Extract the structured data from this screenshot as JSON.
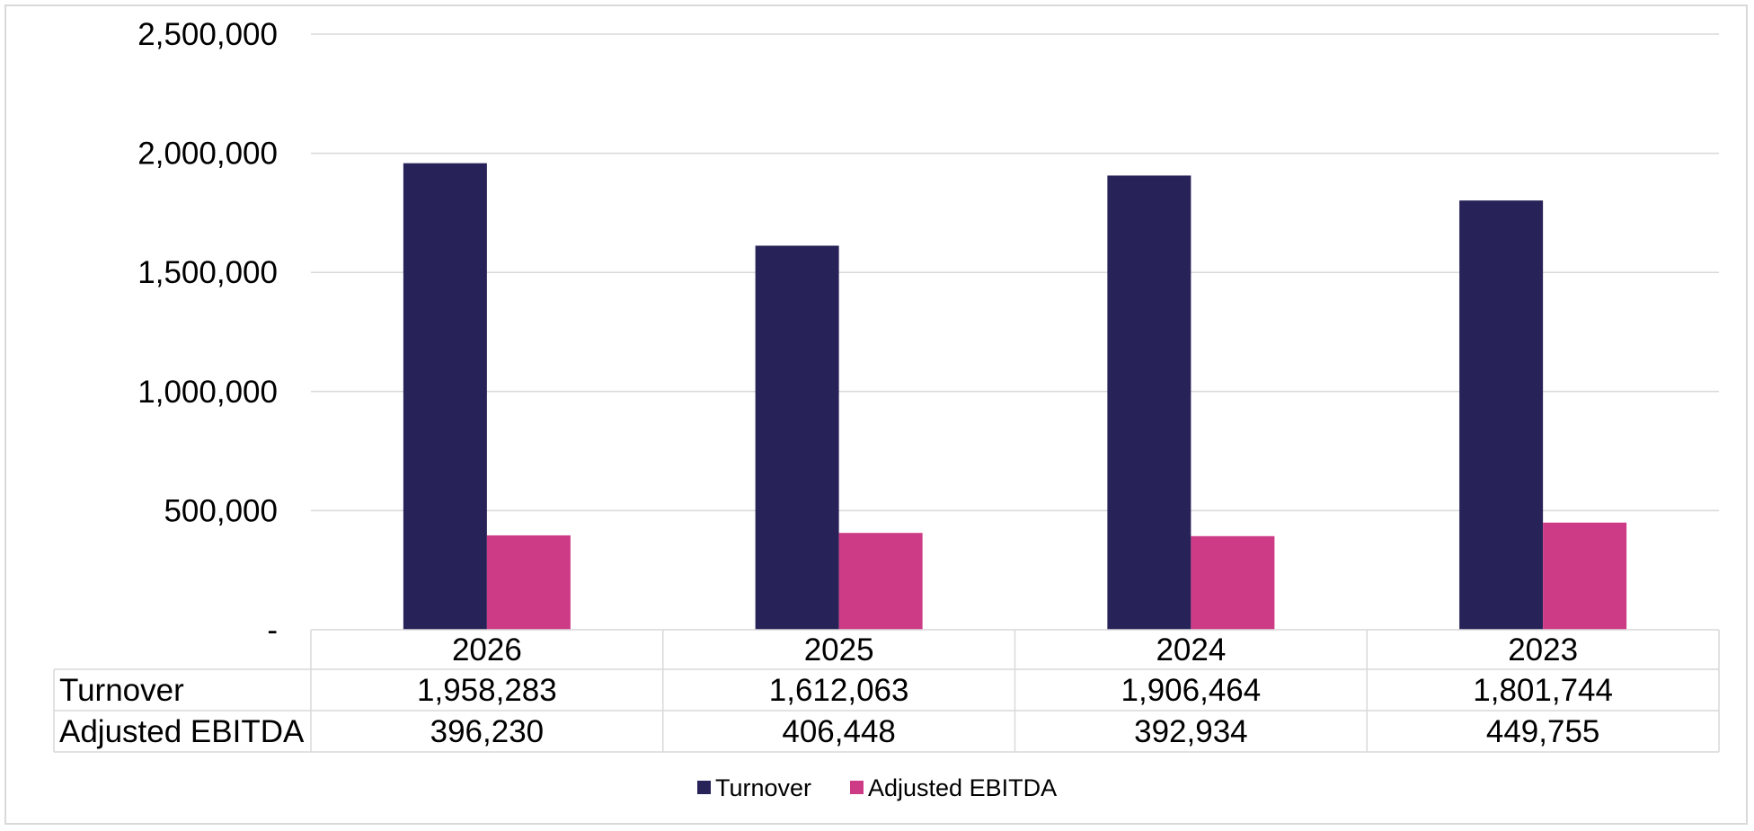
{
  "chart_data": {
    "type": "bar",
    "categories": [
      "2026",
      "2025",
      "2024",
      "2023"
    ],
    "series": [
      {
        "name": "Turnover",
        "values": [
          1958283,
          1612063,
          1906464,
          1801744
        ],
        "labels": [
          "1,958,283",
          "1,612,063",
          "1,906,464",
          "1,801,744"
        ],
        "color": "#272257"
      },
      {
        "name": "Adjusted EBITDA",
        "values": [
          396230,
          406448,
          392934,
          449755
        ],
        "labels": [
          "396,230",
          "406,448",
          "392,934",
          "449,755"
        ],
        "color": "#cd3a86"
      }
    ],
    "ylim": [
      0,
      2500000
    ],
    "yticks": [
      0,
      500000,
      1000000,
      1500000,
      2000000,
      2500000
    ],
    "ytick_labels": [
      "-",
      "500,000",
      "1,000,000",
      "1,500,000",
      "2,000,000",
      "2,500,000"
    ],
    "grid": true,
    "data_table": true,
    "legend_position": "bottom"
  }
}
